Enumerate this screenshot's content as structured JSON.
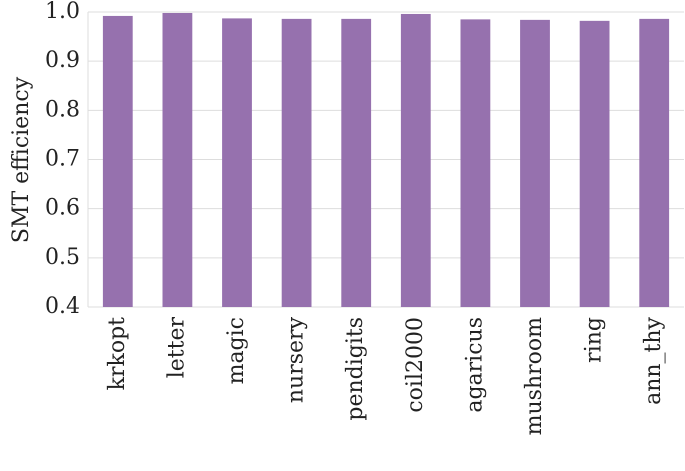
{
  "chart_data": {
    "type": "bar",
    "y_label": "SMT efficiency",
    "categories": [
      "krkopt",
      "letter",
      "magic",
      "nursery",
      "pendigits",
      "coil2000",
      "agaricus",
      "mushroom",
      "ring",
      "ann_thy"
    ],
    "values": [
      0.992,
      0.998,
      0.987,
      0.986,
      0.986,
      0.996,
      0.985,
      0.984,
      0.982,
      0.986
    ],
    "color": "#9671ae",
    "ylim": [
      0.4,
      1.0
    ],
    "yticks": [
      0.4,
      0.5,
      0.6,
      0.7,
      0.8,
      0.9,
      {
        "value": 1.0,
        "label": "1.0"
      }
    ],
    "grid": true
  }
}
